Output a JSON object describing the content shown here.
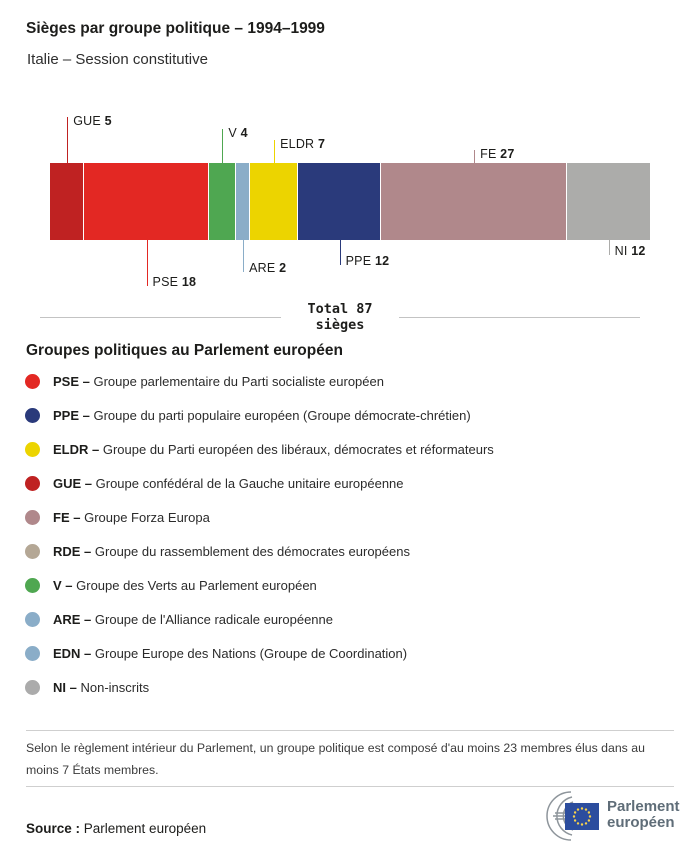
{
  "header": {
    "title": "Sièges par groupe politique – 1994–1999",
    "subtitle": "Italie – Session constitutive"
  },
  "chart_data": {
    "type": "bar",
    "variant": "horizontal-stacked",
    "title": "Sièges par groupe politique – 1994–1999",
    "subtitle": "Italie – Session constitutive",
    "total": 87,
    "total_label_line1": "Total 87",
    "total_label_line2": "sièges",
    "segments": [
      {
        "code": "GUE",
        "value": 5,
        "color": "#bf2222",
        "label_side": "above",
        "tick_len": 46
      },
      {
        "code": "PSE",
        "value": 18,
        "color": "#e32823",
        "label_side": "below",
        "tick_len": 46
      },
      {
        "code": "V",
        "value": 4,
        "color": "#4fa751",
        "label_side": "above",
        "tick_len": 34
      },
      {
        "code": "ARE",
        "value": 2,
        "color": "#8aadc8",
        "label_side": "below",
        "tick_len": 32
      },
      {
        "code": "ELDR",
        "value": 7,
        "color": "#ecd400",
        "label_side": "above",
        "tick_len": 23
      },
      {
        "code": "PPE",
        "value": 12,
        "color": "#2a3a7b",
        "label_side": "below",
        "tick_len": 25
      },
      {
        "code": "FE",
        "value": 27,
        "color": "#b0888b",
        "label_side": "above",
        "tick_len": 13
      },
      {
        "code": "NI",
        "value": 12,
        "color": "#acacaa",
        "label_side": "below",
        "tick_len": 15
      }
    ]
  },
  "legend": {
    "heading": "Groupes politiques au Parlement européen",
    "separator": "–",
    "items": [
      {
        "code": "PSE",
        "color": "#e32823",
        "label": "Groupe parlementaire du Parti socialiste européen"
      },
      {
        "code": "PPE",
        "color": "#2a3a7b",
        "label": "Groupe du parti populaire européen (Groupe démocrate-chrétien)"
      },
      {
        "code": "ELDR",
        "color": "#ecd400",
        "label": "Groupe du Parti européen des libéraux, démocrates et réformateurs"
      },
      {
        "code": "GUE",
        "color": "#bf2222",
        "label": "Groupe confédéral de la Gauche unitaire européenne"
      },
      {
        "code": "FE",
        "color": "#b0888b",
        "label": "Groupe Forza Europa"
      },
      {
        "code": "RDE",
        "color": "#b4a795",
        "label": "Groupe du rassemblement des démocrates européens"
      },
      {
        "code": "V",
        "color": "#4fa751",
        "label": "Groupe des Verts au Parlement européen"
      },
      {
        "code": "ARE",
        "color": "#8aadc8",
        "label": "Groupe de l'Alliance radicale européenne"
      },
      {
        "code": "EDN",
        "color": "#8aadc8",
        "label": "Groupe Europe des Nations (Groupe de Coordination)"
      },
      {
        "code": "NI",
        "color": "#ababab",
        "label": "Non-inscrits"
      }
    ]
  },
  "footer": {
    "note": "Selon le règlement intérieur du Parlement, un groupe politique est composé d'au moins 23 membres élus dans au moins 7 États membres.",
    "source_label": "Source :",
    "source_value": "Parlement européen",
    "logo_line1": "Parlement",
    "logo_line2": "européen"
  },
  "colors": {
    "text_dark": "#1d1d1b",
    "rule_gray": "#c3c3c3",
    "eu_flag_blue": "#2c4d9e",
    "eu_star_yellow": "#f8d24b",
    "logo_gray": "#8e959b"
  }
}
